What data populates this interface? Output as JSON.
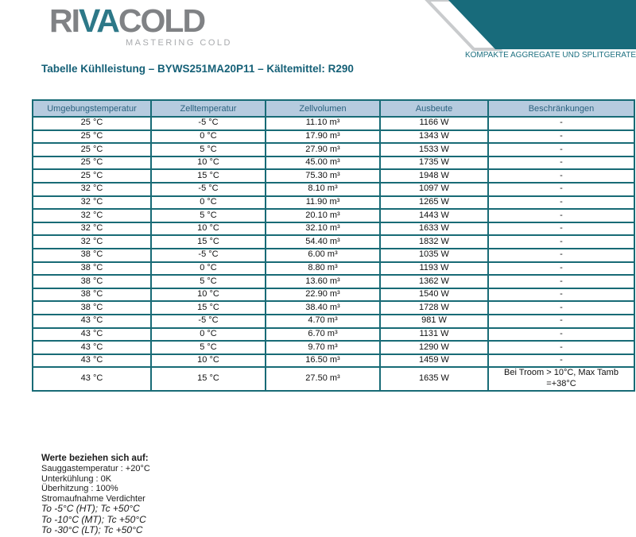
{
  "logo": {
    "part1": "RI",
    "part2": "VA",
    "part3": "COLD",
    "tagline": "MASTERING COLD"
  },
  "banner": {
    "tagline": "KOMPAKTE AGGREGATE UND SPLITGERATE"
  },
  "title": "Tabelle Kühlleistung – BYWS251MA20P11 – Kältemittel: R290",
  "colors": {
    "banner_teal": "#186b7b",
    "title_teal": "#156077",
    "table_border_teal": "#186b76",
    "header_bg_blue": "#b6cbdf",
    "header_text_blue": "#2b617e",
    "logo_gray": "#808285",
    "logo_teal": "#2d7888",
    "logo_tagline_gray": "#a8aaad"
  },
  "table": {
    "headers": [
      "Umgebungstemperatur",
      "Zelltemperatur",
      "Zellvolumen",
      "Ausbeute",
      "Beschränkungen"
    ],
    "rows": [
      [
        "25 °C",
        "-5 °C",
        "11.10 m³",
        "1166 W",
        "-"
      ],
      [
        "25 °C",
        "0 °C",
        "17.90 m³",
        "1343 W",
        "-"
      ],
      [
        "25 °C",
        "5 °C",
        "27.90 m³",
        "1533 W",
        "-"
      ],
      [
        "25 °C",
        "10 °C",
        "45.00 m³",
        "1735 W",
        "-"
      ],
      [
        "25 °C",
        "15 °C",
        "75.30 m³",
        "1948 W",
        "-"
      ],
      [
        "32 °C",
        "-5 °C",
        "8.10 m³",
        "1097 W",
        "-"
      ],
      [
        "32 °C",
        "0 °C",
        "11.90 m³",
        "1265 W",
        "-"
      ],
      [
        "32 °C",
        "5 °C",
        "20.10 m³",
        "1443 W",
        "-"
      ],
      [
        "32 °C",
        "10 °C",
        "32.10 m³",
        "1633 W",
        "-"
      ],
      [
        "32 °C",
        "15 °C",
        "54.40 m³",
        "1832 W",
        "-"
      ],
      [
        "38 °C",
        "-5 °C",
        "6.00 m³",
        "1035 W",
        "-"
      ],
      [
        "38 °C",
        "0 °C",
        "8.80 m³",
        "1193 W",
        "-"
      ],
      [
        "38 °C",
        "5 °C",
        "13.60 m³",
        "1362 W",
        "-"
      ],
      [
        "38 °C",
        "10 °C",
        "22.90 m³",
        "1540 W",
        "-"
      ],
      [
        "38 °C",
        "15 °C",
        "38.40 m³",
        "1728 W",
        "-"
      ],
      [
        "43 °C",
        "-5 °C",
        "4.70 m³",
        "981 W",
        "-"
      ],
      [
        "43 °C",
        "0 °C",
        "6.70 m³",
        "1131 W",
        "-"
      ],
      [
        "43 °C",
        "5 °C",
        "9.70 m³",
        "1290 W",
        "-"
      ],
      [
        "43 °C",
        "10 °C",
        "16.50 m³",
        "1459 W",
        "-"
      ],
      [
        "43 °C",
        "15 °C",
        "27.50 m³",
        "1635 W",
        "Bei Troom > 10°C, Max Tamb =+38°C"
      ]
    ]
  },
  "notes": {
    "heading": "Werte beziehen sich auf:",
    "lines": [
      "Sauggastemperatur : +20°C",
      "Unterkühlung : 0K",
      "Überhitzung : 100%",
      "Stromaufnahme Verdichter"
    ],
    "italic_lines": [
      "To -5°C (HT); Tc +50°C",
      "To -10°C (MT); Tc +50°C",
      "To -30°C (LT); Tc +50°C"
    ]
  }
}
